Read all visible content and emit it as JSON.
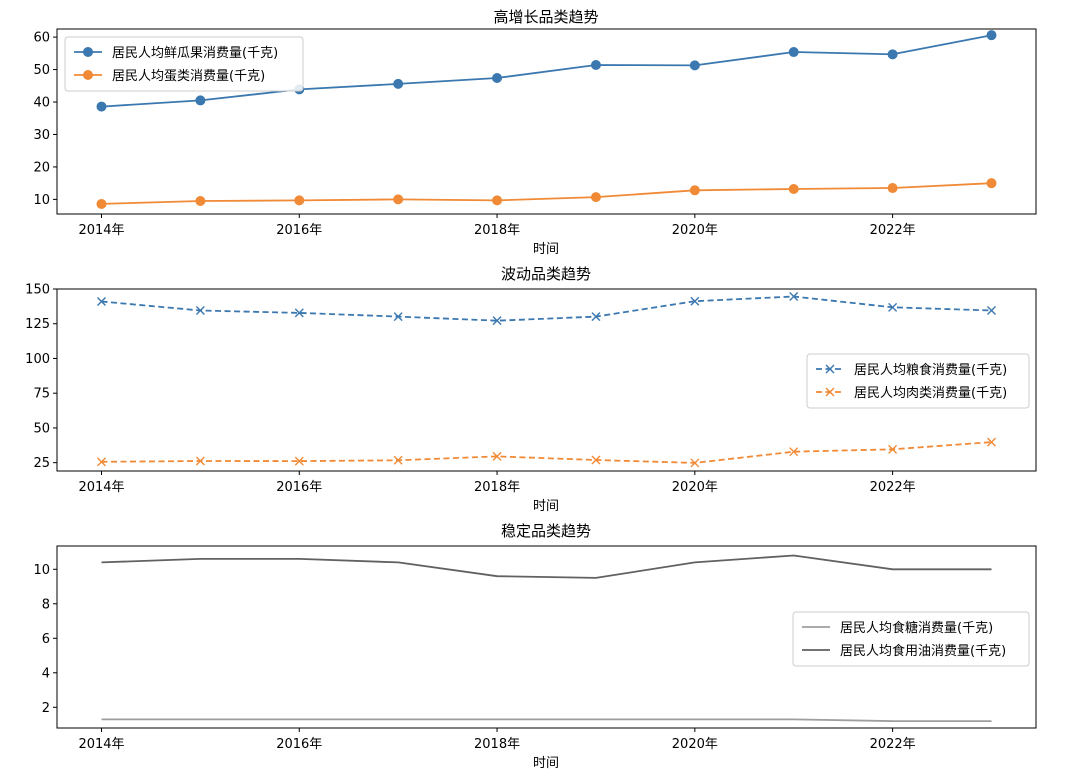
{
  "chart_data": [
    {
      "type": "line",
      "title": "高增长品类趋势",
      "xlabel": "时间",
      "ylabel": "",
      "x": [
        2014,
        2015,
        2016,
        2017,
        2018,
        2019,
        2020,
        2021,
        2022,
        2023
      ],
      "xticks": [
        2014,
        2016,
        2018,
        2020,
        2022
      ],
      "xtick_labels": [
        "2014年",
        "2016年",
        "2018年",
        "2020年",
        "2022年"
      ],
      "xlim": [
        2013.55,
        2023.45
      ],
      "ylim": [
        5.5,
        62.5
      ],
      "yticks": [
        10,
        20,
        30,
        40,
        50,
        60
      ],
      "ytick_labels": [
        "10",
        "20",
        "30",
        "40",
        "50",
        "60"
      ],
      "legend_position": "upper-left",
      "series": [
        {
          "name": "居民人均鲜瓜果消费量(千克)",
          "color": "#3b78b0",
          "style": "solid",
          "marker": "circle",
          "values": [
            38.6,
            40.5,
            43.9,
            45.6,
            47.4,
            51.4,
            51.3,
            55.4,
            54.7,
            60.6
          ]
        },
        {
          "name": "居民人均蛋类消费量(千克)",
          "color": "#f08a36",
          "style": "solid",
          "marker": "circle",
          "values": [
            8.6,
            9.5,
            9.7,
            10.0,
            9.7,
            10.7,
            12.8,
            13.2,
            13.5,
            15.0
          ]
        }
      ]
    },
    {
      "type": "line",
      "title": "波动品类趋势",
      "xlabel": "时间",
      "ylabel": "",
      "x": [
        2014,
        2015,
        2016,
        2017,
        2018,
        2019,
        2020,
        2021,
        2022,
        2023
      ],
      "xticks": [
        2014,
        2016,
        2018,
        2020,
        2022
      ],
      "xtick_labels": [
        "2014年",
        "2016年",
        "2018年",
        "2020年",
        "2022年"
      ],
      "xlim": [
        2013.55,
        2023.45
      ],
      "ylim": [
        19,
        150
      ],
      "yticks": [
        25,
        50,
        75,
        100,
        125,
        150
      ],
      "ytick_labels": [
        "25",
        "50",
        "75",
        "100",
        "125",
        "150"
      ],
      "legend_position": "center-right",
      "series": [
        {
          "name": "居民人均粮食消费量(千克)",
          "color": "#3b78b0",
          "style": "dashed",
          "marker": "x",
          "values": [
            141.0,
            134.5,
            132.8,
            130.1,
            127.2,
            130.1,
            141.2,
            144.6,
            136.8,
            134.5
          ]
        },
        {
          "name": "居民人均肉类消费量(千克)",
          "color": "#f08a36",
          "style": "dashed",
          "marker": "x",
          "values": [
            25.6,
            26.2,
            26.1,
            26.7,
            29.5,
            26.9,
            24.8,
            32.9,
            34.6,
            39.8
          ]
        }
      ]
    },
    {
      "type": "line",
      "title": "稳定品类趋势",
      "xlabel": "时间",
      "ylabel": "",
      "x": [
        2014,
        2015,
        2016,
        2017,
        2018,
        2019,
        2020,
        2021,
        2022,
        2023
      ],
      "xticks": [
        2014,
        2016,
        2018,
        2020,
        2022
      ],
      "xtick_labels": [
        "2014年",
        "2016年",
        "2018年",
        "2020年",
        "2022年"
      ],
      "xlim": [
        2013.55,
        2023.45
      ],
      "ylim": [
        0.8,
        11.35
      ],
      "yticks": [
        2,
        4,
        6,
        8,
        10
      ],
      "ytick_labels": [
        "2",
        "4",
        "6",
        "8",
        "10"
      ],
      "legend_position": "center-right",
      "series": [
        {
          "name": "居民人均食糖消费量(千克)",
          "color": "#9e9e9e",
          "style": "solid",
          "marker": "none",
          "values": [
            1.3,
            1.3,
            1.3,
            1.3,
            1.3,
            1.3,
            1.3,
            1.3,
            1.2,
            1.2
          ]
        },
        {
          "name": "居民人均食用油消费量(千克)",
          "color": "#616161",
          "style": "solid",
          "marker": "none",
          "values": [
            10.4,
            10.6,
            10.6,
            10.4,
            9.6,
            9.5,
            10.4,
            10.8,
            10.0,
            10.0
          ]
        }
      ]
    }
  ]
}
